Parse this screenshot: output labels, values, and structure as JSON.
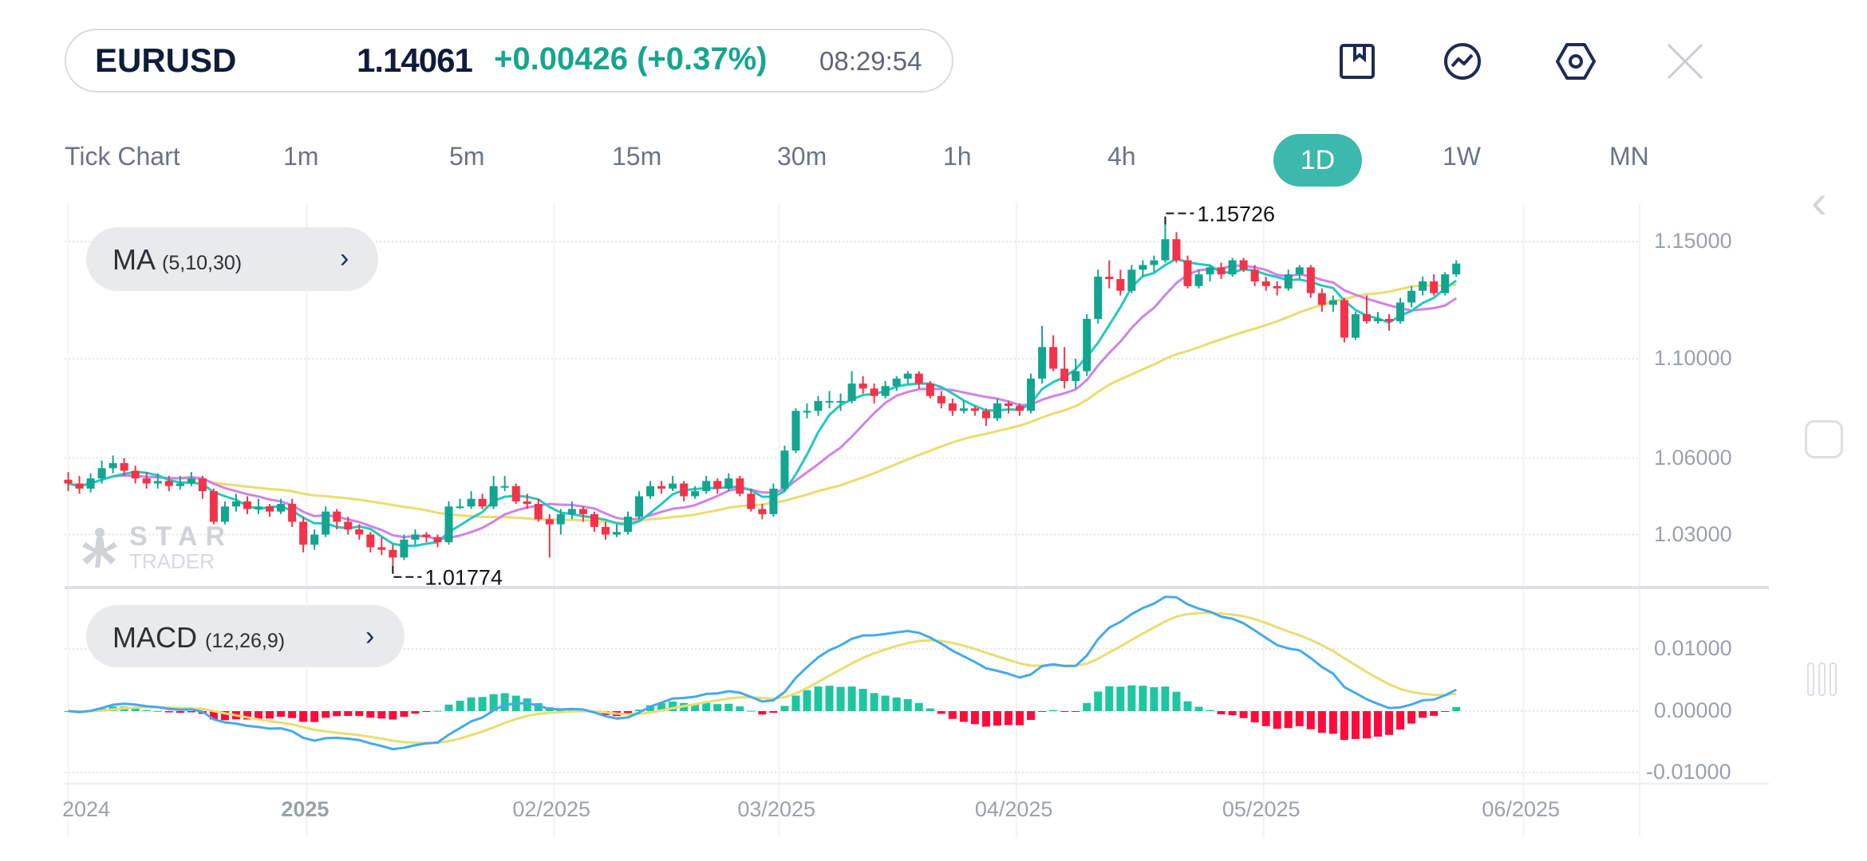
{
  "header": {
    "symbol": "EURUSD",
    "price": "1.14061",
    "change": "+0.00426 (+0.37%)",
    "time": "08:29:54",
    "icons": [
      "bookmark-icon",
      "indicator-icon",
      "settings-icon",
      "close-icon"
    ]
  },
  "timeframes": [
    {
      "label": "Tick Chart"
    },
    {
      "label": "1m"
    },
    {
      "label": "5m"
    },
    {
      "label": "15m"
    },
    {
      "label": "30m"
    },
    {
      "label": "1h"
    },
    {
      "label": "4h"
    },
    {
      "label": "1D",
      "active": true
    },
    {
      "label": "1W"
    },
    {
      "label": "MN"
    }
  ],
  "indicators": {
    "ma": {
      "name": "MA",
      "params": "(5,10,30)",
      "periods": [
        5,
        10,
        30
      ]
    },
    "macd": {
      "name": "MACD",
      "params": "(12,26,9)",
      "periods": [
        12,
        26,
        9
      ]
    }
  },
  "watermark": {
    "line1": "STAR",
    "line2": "TRADER"
  },
  "colors": {
    "up": "#12a58f",
    "down": "#f2334a",
    "ma5": "#25c8be",
    "ma10": "#cf82ea",
    "ma30": "#ebdc6e",
    "macd": "#45a9ec",
    "signal": "#e9dd72",
    "hist_up": "#1ec6a0",
    "hist_down": "#ff0a3c",
    "accent": "#3db8ad"
  },
  "chart_data": {
    "type": "candlestick",
    "price_ticks": [
      "1.15000",
      "1.10000",
      "1.06000",
      "1.03000"
    ],
    "macd_ticks": [
      "0.01000",
      "0.00000",
      "-0.01000"
    ],
    "high_label": "1.15726",
    "low_label": "1.01774",
    "date_ticks": [
      {
        "label": "2024",
        "index": 0,
        "bold": false
      },
      {
        "label": "2025",
        "index": 21.3,
        "bold": true
      },
      {
        "label": "02/2025",
        "index": 43.4,
        "bold": false
      },
      {
        "label": "03/2025",
        "index": 63.5,
        "bold": false
      },
      {
        "label": "04/2025",
        "index": 84.7,
        "bold": false
      },
      {
        "label": "05/2025",
        "index": 106.8,
        "bold": false
      },
      {
        "label": "06/2025",
        "index": 130,
        "bold": false
      }
    ],
    "ohlc": [
      [
        1.0515,
        1.0545,
        1.047,
        1.05
      ],
      [
        1.05,
        1.053,
        1.046,
        1.048
      ],
      [
        1.048,
        1.054,
        1.0465,
        1.052
      ],
      [
        1.052,
        1.059,
        1.05,
        1.056
      ],
      [
        1.056,
        1.061,
        1.054,
        1.058
      ],
      [
        1.058,
        1.06,
        1.053,
        1.055
      ],
      [
        1.055,
        1.057,
        1.05,
        1.052
      ],
      [
        1.052,
        1.0545,
        1.048,
        1.05
      ],
      [
        1.05,
        1.054,
        1.048,
        1.051
      ],
      [
        1.051,
        1.053,
        1.047,
        1.049
      ],
      [
        1.049,
        1.053,
        1.0475,
        1.05
      ],
      [
        1.05,
        1.0545,
        1.049,
        1.052
      ],
      [
        1.052,
        1.053,
        1.044,
        1.047
      ],
      [
        1.047,
        1.048,
        1.034,
        1.035
      ],
      [
        1.035,
        1.043,
        1.034,
        1.041
      ],
      [
        1.041,
        1.046,
        1.039,
        1.043
      ],
      [
        1.043,
        1.045,
        1.038,
        1.04
      ],
      [
        1.04,
        1.044,
        1.038,
        1.041
      ],
      [
        1.041,
        1.042,
        1.037,
        1.039
      ],
      [
        1.039,
        1.044,
        1.038,
        1.042
      ],
      [
        1.042,
        1.044,
        1.033,
        1.035
      ],
      [
        1.035,
        1.037,
        1.023,
        1.026
      ],
      [
        1.026,
        1.032,
        1.024,
        1.03
      ],
      [
        1.03,
        1.041,
        1.029,
        1.039
      ],
      [
        1.039,
        1.04,
        1.032,
        1.035
      ],
      [
        1.035,
        1.037,
        1.03,
        1.032
      ],
      [
        1.032,
        1.034,
        1.028,
        1.03
      ],
      [
        1.03,
        1.031,
        1.023,
        1.025
      ],
      [
        1.025,
        1.029,
        1.022,
        1.024
      ],
      [
        1.024,
        1.026,
        1.01774,
        1.021
      ],
      [
        1.021,
        1.03,
        1.02,
        1.028
      ],
      [
        1.028,
        1.032,
        1.026,
        1.03
      ],
      [
        1.03,
        1.031,
        1.027,
        1.029
      ],
      [
        1.029,
        1.03,
        1.025,
        1.027
      ],
      [
        1.027,
        1.043,
        1.026,
        1.041
      ],
      [
        1.041,
        1.044,
        1.04,
        1.041
      ],
      [
        1.041,
        1.047,
        1.04,
        1.044
      ],
      [
        1.044,
        1.046,
        1.04,
        1.041
      ],
      [
        1.041,
        1.053,
        1.04,
        1.049
      ],
      [
        1.049,
        1.053,
        1.047,
        1.049
      ],
      [
        1.049,
        1.05,
        1.042,
        1.043
      ],
      [
        1.043,
        1.046,
        1.04,
        1.042
      ],
      [
        1.042,
        1.044,
        1.035,
        1.036
      ],
      [
        1.036,
        1.038,
        1.021,
        1.034
      ],
      [
        1.034,
        1.04,
        1.03,
        1.038
      ],
      [
        1.038,
        1.043,
        1.036,
        1.04
      ],
      [
        1.04,
        1.041,
        1.035,
        1.038
      ],
      [
        1.038,
        1.039,
        1.031,
        1.033
      ],
      [
        1.033,
        1.035,
        1.028,
        1.03
      ],
      [
        1.03,
        1.034,
        1.029,
        1.031
      ],
      [
        1.031,
        1.039,
        1.03,
        1.037
      ],
      [
        1.037,
        1.047,
        1.036,
        1.045
      ],
      [
        1.045,
        1.051,
        1.044,
        1.049
      ],
      [
        1.049,
        1.051,
        1.046,
        1.048
      ],
      [
        1.048,
        1.053,
        1.047,
        1.05
      ],
      [
        1.05,
        1.051,
        1.043,
        1.045
      ],
      [
        1.045,
        1.049,
        1.044,
        1.047
      ],
      [
        1.047,
        1.053,
        1.046,
        1.051
      ],
      [
        1.051,
        1.052,
        1.046,
        1.048
      ],
      [
        1.048,
        1.054,
        1.047,
        1.052
      ],
      [
        1.052,
        1.053,
        1.045,
        1.046
      ],
      [
        1.046,
        1.048,
        1.039,
        1.04
      ],
      [
        1.04,
        1.042,
        1.036,
        1.038
      ],
      [
        1.038,
        1.05,
        1.037,
        1.048
      ],
      [
        1.048,
        1.065,
        1.047,
        1.063
      ],
      [
        1.063,
        1.08,
        1.062,
        1.079
      ],
      [
        1.079,
        1.082,
        1.076,
        1.079
      ],
      [
        1.079,
        1.085,
        1.077,
        1.083
      ],
      [
        1.083,
        1.087,
        1.08,
        1.083
      ],
      [
        1.083,
        1.086,
        1.079,
        1.083
      ],
      [
        1.083,
        1.095,
        1.082,
        1.09
      ],
      [
        1.09,
        1.093,
        1.086,
        1.088
      ],
      [
        1.088,
        1.09,
        1.082,
        1.085
      ],
      [
        1.085,
        1.091,
        1.084,
        1.089
      ],
      [
        1.089,
        1.093,
        1.087,
        1.092
      ],
      [
        1.092,
        1.095,
        1.09,
        1.094
      ],
      [
        1.094,
        1.095,
        1.088,
        1.09
      ],
      [
        1.09,
        1.091,
        1.084,
        1.085
      ],
      [
        1.085,
        1.087,
        1.08,
        1.082
      ],
      [
        1.082,
        1.084,
        1.077,
        1.079
      ],
      [
        1.079,
        1.083,
        1.078,
        1.08
      ],
      [
        1.08,
        1.081,
        1.077,
        1.079
      ],
      [
        1.079,
        1.08,
        1.073,
        1.076
      ],
      [
        1.076,
        1.084,
        1.075,
        1.082
      ],
      [
        1.082,
        1.083,
        1.078,
        1.081
      ],
      [
        1.081,
        1.082,
        1.077,
        1.079
      ],
      [
        1.079,
        1.094,
        1.078,
        1.092
      ],
      [
        1.092,
        1.114,
        1.09,
        1.105
      ],
      [
        1.105,
        1.11,
        1.095,
        1.096
      ],
      [
        1.096,
        1.105,
        1.088,
        1.091
      ],
      [
        1.091,
        1.1,
        1.088,
        1.095
      ],
      [
        1.095,
        1.119,
        1.093,
        1.117
      ],
      [
        1.117,
        1.138,
        1.115,
        1.135
      ],
      [
        1.135,
        1.142,
        1.13,
        1.134
      ],
      [
        1.134,
        1.138,
        1.127,
        1.129
      ],
      [
        1.129,
        1.14,
        1.128,
        1.138
      ],
      [
        1.138,
        1.142,
        1.135,
        1.14
      ],
      [
        1.14,
        1.144,
        1.137,
        1.142
      ],
      [
        1.142,
        1.15726,
        1.141,
        1.151
      ],
      [
        1.151,
        1.154,
        1.141,
        1.142
      ],
      [
        1.142,
        1.144,
        1.13,
        1.131
      ],
      [
        1.131,
        1.138,
        1.13,
        1.136
      ],
      [
        1.136,
        1.14,
        1.133,
        1.139
      ],
      [
        1.139,
        1.141,
        1.134,
        1.136
      ],
      [
        1.136,
        1.143,
        1.135,
        1.142
      ],
      [
        1.142,
        1.143,
        1.137,
        1.138
      ],
      [
        1.138,
        1.14,
        1.131,
        1.133
      ],
      [
        1.133,
        1.135,
        1.129,
        1.131
      ],
      [
        1.131,
        1.133,
        1.127,
        1.13
      ],
      [
        1.13,
        1.138,
        1.129,
        1.136
      ],
      [
        1.136,
        1.14,
        1.134,
        1.139
      ],
      [
        1.139,
        1.14,
        1.126,
        1.128
      ],
      [
        1.128,
        1.13,
        1.12,
        1.123
      ],
      [
        1.123,
        1.127,
        1.12,
        1.125
      ],
      [
        1.125,
        1.126,
        1.107,
        1.109
      ],
      [
        1.109,
        1.12,
        1.108,
        1.119
      ],
      [
        1.119,
        1.127,
        1.115,
        1.116
      ],
      [
        1.116,
        1.12,
        1.115,
        1.117
      ],
      [
        1.117,
        1.119,
        1.112,
        1.116
      ],
      [
        1.116,
        1.126,
        1.115,
        1.124
      ],
      [
        1.124,
        1.131,
        1.122,
        1.129
      ],
      [
        1.129,
        1.135,
        1.127,
        1.133
      ],
      [
        1.133,
        1.136,
        1.127,
        1.128
      ],
      [
        1.128,
        1.137,
        1.127,
        1.136
      ],
      [
        1.136,
        1.142,
        1.135,
        1.14061
      ]
    ]
  }
}
